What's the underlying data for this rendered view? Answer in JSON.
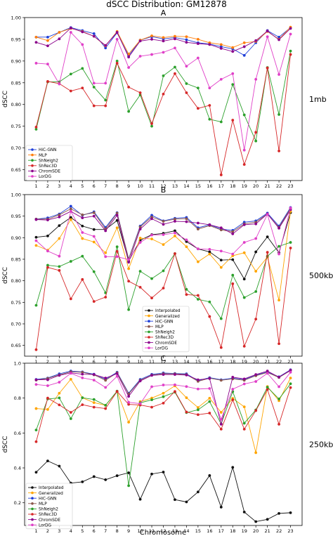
{
  "figure": {
    "title": "dSCC Distribution: GM12878",
    "xlabel": "Chromosome"
  },
  "chart_data": [
    {
      "type": "line",
      "panel": "A",
      "side_label": "1mb",
      "ylabel": "dSCC",
      "ylim": [
        0.625,
        1.0
      ],
      "yticks": [
        0.65,
        0.7,
        0.75,
        0.8,
        0.85,
        0.9,
        0.95,
        1.0
      ],
      "ytick_labels": [
        "0.65",
        "0.70",
        "0.75",
        "0.80",
        "0.85",
        "0.90",
        "0.95",
        "1.00"
      ],
      "x": [
        1,
        2,
        3,
        4,
        5,
        6,
        7,
        8,
        9,
        10,
        11,
        12,
        13,
        14,
        15,
        16,
        17,
        18,
        19,
        20,
        21,
        22,
        23
      ],
      "xtick_labels": [
        "1",
        "2",
        "3",
        "4",
        "5",
        "6",
        "7",
        "8",
        "9",
        "10",
        "11",
        "12",
        "13",
        "14",
        "15",
        "16",
        "17",
        "18",
        "19",
        "20",
        "21",
        "22",
        "23"
      ],
      "legend_position": "lower-left",
      "series": [
        {
          "name": "HiC-GNN",
          "color": "#1f3fd8",
          "values": [
            0.955,
            0.955,
            0.966,
            0.977,
            0.97,
            0.963,
            0.93,
            0.965,
            0.912,
            0.948,
            0.956,
            0.951,
            0.954,
            0.949,
            0.942,
            0.939,
            0.933,
            0.928,
            0.913,
            0.942,
            0.97,
            0.955,
            0.977
          ]
        },
        {
          "name": "MLP",
          "color": "#ff7f0e",
          "values": [
            0.955,
            0.947,
            0.966,
            0.975,
            0.968,
            0.957,
            0.935,
            0.968,
            0.916,
            0.948,
            0.958,
            0.954,
            0.957,
            0.956,
            0.95,
            0.942,
            0.938,
            0.931,
            0.942,
            0.945,
            0.968,
            0.95,
            0.978
          ]
        },
        {
          "name": "ShNeigh2",
          "color": "#2ca02c",
          "values": [
            0.743,
            0.852,
            0.852,
            0.87,
            0.883,
            0.84,
            0.81,
            0.9,
            0.784,
            0.822,
            0.75,
            0.866,
            0.886,
            0.848,
            0.838,
            0.766,
            0.76,
            0.846,
            0.776,
            0.716,
            0.885,
            0.777,
            0.923
          ]
        },
        {
          "name": "ShRec3D",
          "color": "#d62728",
          "values": [
            0.748,
            0.853,
            0.848,
            0.831,
            0.838,
            0.797,
            0.797,
            0.895,
            0.84,
            0.827,
            0.756,
            0.824,
            0.871,
            0.827,
            0.791,
            0.798,
            0.638,
            0.764,
            0.662,
            0.736,
            0.884,
            0.693,
            0.915
          ]
        },
        {
          "name": "ChromSDE",
          "color": "#8b008b",
          "values": [
            0.943,
            0.935,
            0.951,
            0.976,
            0.967,
            0.957,
            0.936,
            0.966,
            0.909,
            0.946,
            0.95,
            0.946,
            0.951,
            0.943,
            0.94,
            0.938,
            0.929,
            0.922,
            0.933,
            0.947,
            0.969,
            0.949,
            0.975
          ]
        },
        {
          "name": "LorDG",
          "color": "#e040c8",
          "values": [
            0.895,
            0.893,
            0.847,
            0.966,
            0.938,
            0.849,
            0.849,
            0.95,
            0.885,
            0.911,
            0.915,
            0.92,
            0.93,
            0.888,
            0.907,
            0.838,
            0.858,
            0.871,
            0.695,
            0.858,
            0.956,
            0.869,
            0.962
          ]
        }
      ]
    },
    {
      "type": "line",
      "panel": "B",
      "side_label": "500kb",
      "ylabel": "dSCC",
      "ylim": [
        0.625,
        1.0
      ],
      "yticks": [
        0.65,
        0.7,
        0.75,
        0.8,
        0.85,
        0.9,
        0.95,
        1.0
      ],
      "ytick_labels": [
        "0.65",
        "0.70",
        "0.75",
        "0.80",
        "0.85",
        "0.90",
        "0.95",
        "1.00"
      ],
      "x": [
        1,
        2,
        3,
        4,
        5,
        6,
        7,
        8,
        9,
        10,
        11,
        12,
        13,
        14,
        15,
        16,
        17,
        18,
        19,
        20,
        21,
        22,
        23
      ],
      "xtick_labels": [
        "1",
        "2",
        "3",
        "4",
        "5",
        "6",
        "7",
        "8",
        "9",
        "10",
        "11",
        "12",
        "13",
        "14",
        "15",
        "16",
        "17",
        "18",
        "19",
        "20",
        "21",
        "22",
        "23"
      ],
      "legend_position": "lower-center",
      "series": [
        {
          "name": "Interpolated",
          "color": "#111111",
          "values": [
            0.901,
            0.904,
            0.928,
            0.947,
            0.927,
            0.919,
            0.919,
            0.94,
            0.846,
            0.894,
            0.907,
            0.91,
            0.916,
            0.891,
            0.874,
            0.867,
            0.848,
            0.849,
            0.804,
            0.867,
            0.902,
            0.865,
            0.958
          ]
        },
        {
          "name": "Generalized",
          "color": "#ffa500",
          "values": [
            0.882,
            0.871,
            0.898,
            0.942,
            0.898,
            0.89,
            0.865,
            0.923,
            0.828,
            0.899,
            0.897,
            0.884,
            0.904,
            0.879,
            0.844,
            0.862,
            0.831,
            0.858,
            0.865,
            0.822,
            0.855,
            0.755,
            0.961
          ]
        },
        {
          "name": "HiC-GNN",
          "color": "#1f3fd8",
          "values": [
            0.943,
            0.946,
            0.955,
            0.973,
            0.952,
            0.96,
            0.924,
            0.958,
            0.851,
            0.927,
            0.952,
            0.939,
            0.945,
            0.947,
            0.923,
            0.93,
            0.92,
            0.917,
            0.936,
            0.939,
            0.957,
            0.927,
            0.97
          ]
        },
        {
          "name": "MLP",
          "color": "#8c564b",
          "values": [
            0.943,
            0.943,
            0.953,
            0.967,
            0.953,
            0.958,
            0.92,
            0.957,
            0.85,
            0.925,
            0.948,
            0.938,
            0.943,
            0.944,
            0.92,
            0.928,
            0.918,
            0.914,
            0.932,
            0.936,
            0.955,
            0.924,
            0.968
          ]
        },
        {
          "name": "ShNeigh2",
          "color": "#2ca02c",
          "values": [
            0.743,
            0.836,
            0.833,
            0.845,
            0.857,
            0.821,
            0.772,
            0.879,
            0.733,
            0.822,
            0.805,
            0.823,
            0.863,
            0.78,
            0.757,
            0.751,
            0.712,
            0.813,
            0.761,
            0.775,
            0.857,
            0.88,
            0.889
          ]
        },
        {
          "name": "ShRec3D",
          "color": "#d62728",
          "values": [
            0.64,
            0.831,
            0.824,
            0.758,
            0.803,
            0.752,
            0.762,
            0.868,
            0.799,
            0.785,
            0.76,
            0.783,
            0.863,
            0.768,
            0.766,
            0.717,
            0.645,
            0.793,
            0.648,
            0.711,
            0.866,
            0.654,
            0.876
          ]
        },
        {
          "name": "ChromSDE",
          "color": "#8b008b",
          "values": [
            0.942,
            0.941,
            0.948,
            0.961,
            0.946,
            0.95,
            0.916,
            0.952,
            0.843,
            0.92,
            0.944,
            0.931,
            0.938,
            0.937,
            0.934,
            0.93,
            0.923,
            0.909,
            0.93,
            0.932,
            0.955,
            0.922,
            0.965
          ]
        },
        {
          "name": "LorDG",
          "color": "#e040c8",
          "values": [
            0.893,
            0.869,
            0.857,
            0.961,
            0.912,
            0.903,
            0.856,
            0.856,
            0.849,
            0.889,
            0.906,
            0.907,
            0.911,
            0.895,
            0.874,
            0.873,
            0.869,
            0.862,
            0.889,
            0.898,
            0.954,
            0.862,
            0.969
          ]
        }
      ]
    },
    {
      "type": "line",
      "panel": "C",
      "side_label": "250kb",
      "ylabel": "dSCC",
      "ylim": [
        0.07,
        1.0
      ],
      "yticks": [
        0.2,
        0.4,
        0.6,
        0.8,
        1.0
      ],
      "ytick_labels": [
        "0.2",
        "0.4",
        "0.6",
        "0.8",
        "1.0"
      ],
      "x": [
        1,
        2,
        3,
        4,
        5,
        6,
        7,
        8,
        9,
        10,
        11,
        12,
        13,
        14,
        15,
        16,
        17,
        18,
        19,
        20,
        21,
        22,
        23
      ],
      "xtick_labels": [
        "1",
        "2",
        "3",
        "4",
        "5",
        "6",
        "7",
        "8",
        "9",
        "10",
        "11",
        "12",
        "13",
        "14",
        "15",
        "16",
        "17",
        "18",
        "19",
        "20",
        "21",
        "22",
        "23"
      ],
      "legend_position": "lower-left",
      "series": [
        {
          "name": "Interpolated",
          "color": "#111111",
          "values": [
            0.375,
            0.44,
            0.41,
            0.313,
            0.32,
            0.35,
            0.332,
            0.355,
            0.372,
            0.22,
            0.365,
            0.376,
            0.218,
            0.205,
            0.262,
            0.356,
            0.175,
            0.403,
            0.147,
            0.092,
            0.105,
            0.139,
            0.143
          ]
        },
        {
          "name": "Generalized",
          "color": "#ffa500",
          "values": [
            0.74,
            0.735,
            0.828,
            0.908,
            0.802,
            0.774,
            0.759,
            0.838,
            0.662,
            0.78,
            0.8,
            0.828,
            0.87,
            0.802,
            0.746,
            0.799,
            0.718,
            0.798,
            0.75,
            0.487,
            0.866,
            0.785,
            0.915
          ]
        },
        {
          "name": "HiC-GNN",
          "color": "#1f3fd8",
          "values": [
            0.907,
            0.915,
            0.939,
            0.955,
            0.95,
            0.937,
            0.908,
            0.948,
            0.828,
            0.907,
            0.936,
            0.944,
            0.941,
            0.939,
            0.9,
            0.917,
            0.905,
            0.914,
            0.906,
            0.932,
            0.95,
            0.922,
            0.962
          ]
        },
        {
          "name": "MLP",
          "color": "#8c564b",
          "values": [
            0.903,
            0.913,
            0.933,
            0.951,
            0.948,
            0.933,
            0.902,
            0.945,
            0.824,
            0.902,
            0.932,
            0.94,
            0.939,
            0.935,
            0.896,
            0.914,
            0.902,
            0.91,
            0.902,
            0.928,
            0.947,
            0.918,
            0.958
          ]
        },
        {
          "name": "ShNeigh2",
          "color": "#2ca02c",
          "values": [
            0.617,
            0.795,
            0.801,
            0.682,
            0.802,
            0.792,
            0.759,
            0.84,
            0.298,
            0.773,
            0.79,
            0.808,
            0.834,
            0.717,
            0.733,
            0.78,
            0.652,
            0.837,
            0.656,
            0.732,
            0.862,
            0.795,
            0.882
          ]
        },
        {
          "name": "ShRec3D",
          "color": "#d62728",
          "values": [
            0.55,
            0.8,
            0.761,
            0.718,
            0.762,
            0.748,
            0.74,
            0.838,
            0.764,
            0.76,
            0.748,
            0.771,
            0.838,
            0.72,
            0.705,
            0.714,
            0.622,
            0.79,
            0.622,
            0.728,
            0.849,
            0.65,
            0.86
          ]
        },
        {
          "name": "ChromSDE",
          "color": "#8b008b",
          "values": [
            0.905,
            0.905,
            0.93,
            0.945,
            0.937,
            0.935,
            0.915,
            0.94,
            0.81,
            0.898,
            0.93,
            0.935,
            0.935,
            0.932,
            0.905,
            0.912,
            0.65,
            0.92,
            0.91,
            0.935,
            0.955,
            0.92,
            0.96
          ]
        },
        {
          "name": "LorDG",
          "color": "#e040c8",
          "values": [
            0.878,
            0.871,
            0.891,
            0.942,
            0.916,
            0.903,
            0.861,
            0.925,
            0.776,
            0.768,
            0.865,
            0.875,
            0.876,
            0.866,
            0.852,
            0.855,
            0.679,
            0.851,
            0.881,
            0.895,
            0.942,
            0.865,
            0.948
          ]
        }
      ]
    }
  ]
}
